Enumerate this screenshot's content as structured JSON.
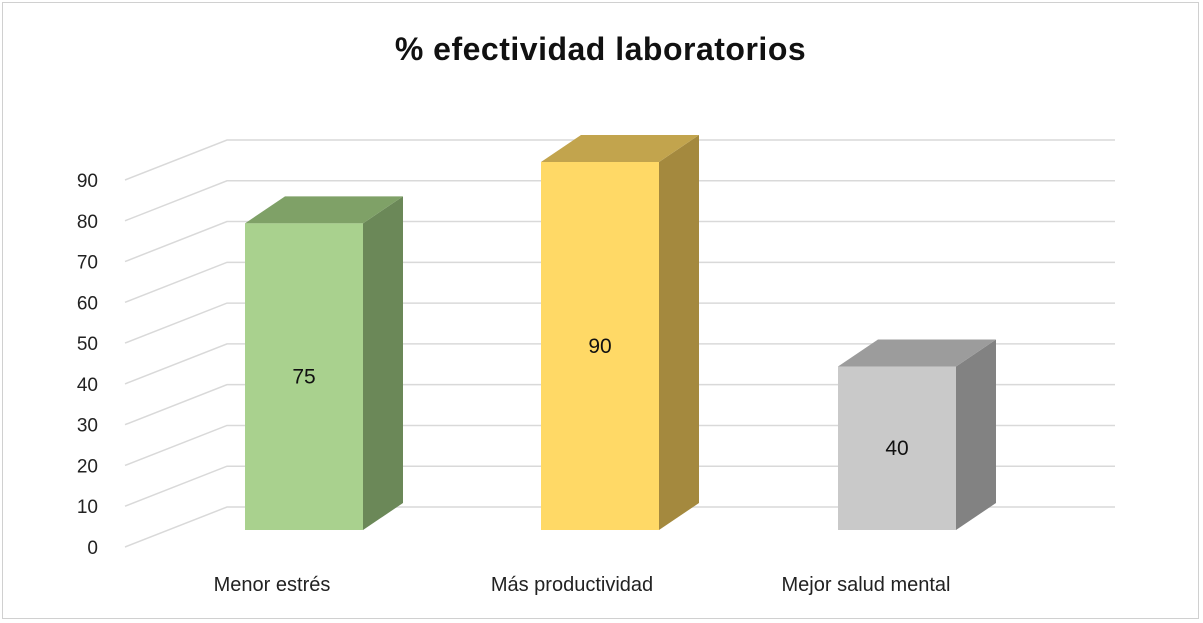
{
  "chart_data": {
    "type": "bar",
    "title": "% efectividad laboratorios",
    "categories": [
      "Menor estrés",
      "Más productividad",
      "Mejor salud mental"
    ],
    "values": [
      75,
      90,
      40
    ],
    "data_labels": [
      "75",
      "90",
      "40"
    ],
    "ylim": [
      0,
      90
    ],
    "yticks": [
      "0",
      "10",
      "20",
      "30",
      "40",
      "50",
      "60",
      "70",
      "80",
      "90"
    ],
    "grid": true,
    "legend": "none",
    "style": "3d-column",
    "colors": [
      {
        "front": "#a9d18e",
        "side": "#6b8858",
        "top": "#7fa167"
      },
      {
        "front": "#ffd966",
        "side": "#a4893e",
        "top": "#c2a44d"
      },
      {
        "front": "#c9c9c9",
        "side": "#828282",
        "top": "#9c9c9c"
      }
    ]
  }
}
